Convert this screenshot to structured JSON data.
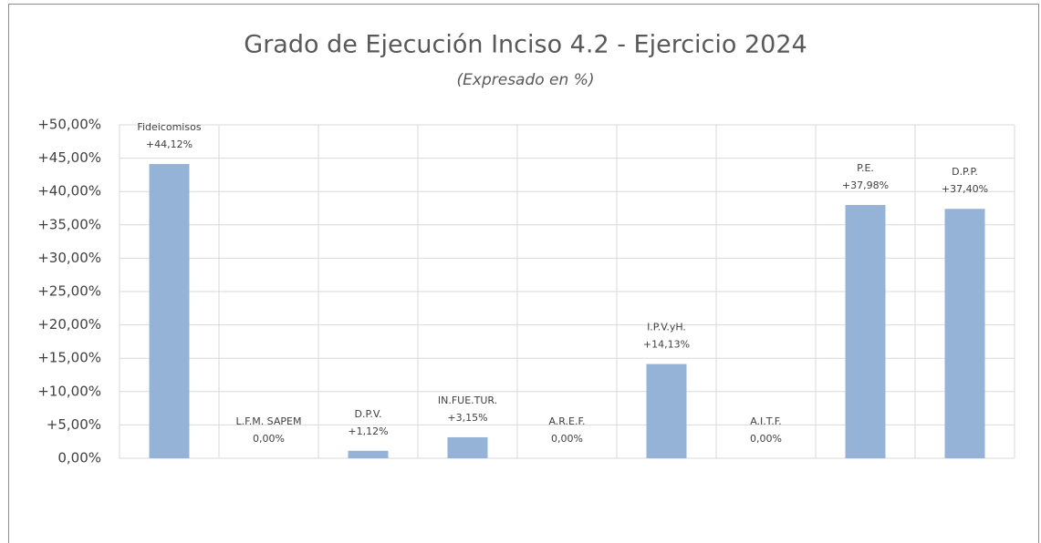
{
  "chart_data": {
    "type": "bar",
    "title": "Grado de Ejecución Inciso 4.2 - Ejercicio 2024",
    "subtitle": "(Expresado en %)",
    "categories": [
      "Fideicomisos",
      "L.F.M. SAPEM",
      "D.P.V.",
      "IN.FUE.TUR.",
      "A.R.E.F.",
      "I.P.V.yH.",
      "A.I.T.F.",
      "P.E.",
      "D.P.P."
    ],
    "values": [
      44.12,
      0,
      1.12,
      3.15,
      0,
      14.13,
      0,
      37.98,
      37.4
    ],
    "value_labels": [
      "+44,12%",
      "0,00%",
      "+1,12%",
      "+3,15%",
      "0,00%",
      "+14,13%",
      "0,00%",
      "+37,98%",
      "+37,40%"
    ],
    "color": "#95b3d7",
    "ylim": [
      0,
      50
    ],
    "yticks": [
      {
        "value": 0,
        "label": "0,00%"
      },
      {
        "value": 5,
        "label": "+5,00%"
      },
      {
        "value": 10,
        "label": "+10,00%"
      },
      {
        "value": 15,
        "label": "+15,00%"
      },
      {
        "value": 20,
        "label": "+20,00%"
      },
      {
        "value": 25,
        "label": "+25,00%"
      },
      {
        "value": 30,
        "label": "+30,00%"
      },
      {
        "value": 35,
        "label": "+35,00%"
      },
      {
        "value": 40,
        "label": "+40,00%"
      },
      {
        "value": 45,
        "label": "+45,00%"
      },
      {
        "value": 50,
        "label": "+50,00%"
      }
    ],
    "grid": true
  }
}
